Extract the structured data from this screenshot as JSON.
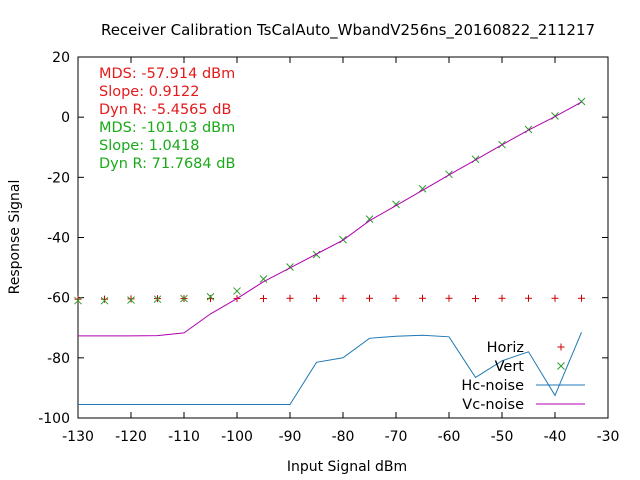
{
  "chart_data": {
    "type": "scatter",
    "title": "Receiver Calibration TsCalAuto_WbandV256ns_20160822_211217",
    "xlabel": "Input Signal dBm",
    "ylabel": "Response Signal",
    "xlim": [
      -130,
      -30
    ],
    "ylim": [
      -100,
      20
    ],
    "x_ticks": [
      -130,
      -120,
      -110,
      -100,
      -90,
      -80,
      -70,
      -60,
      -50,
      -40,
      -30
    ],
    "y_ticks": [
      -100,
      -80,
      -60,
      -40,
      -20,
      0,
      20
    ],
    "x_tick_labels": [
      "-130",
      "-120",
      "-110",
      "-100",
      "-90",
      "-80",
      "-70",
      "-60",
      "-50",
      "-40",
      "-30"
    ],
    "y_tick_labels": [
      "-100",
      "-80",
      "-60",
      "-40",
      "-20",
      "0",
      "20"
    ],
    "grid": false,
    "legend_position": "bottom-right",
    "annotations": [
      {
        "text": "MDS: -57.914 dBm",
        "color": "#e41a1c"
      },
      {
        "text": "Slope: 0.9122",
        "color": "#e41a1c"
      },
      {
        "text": "Dyn R: -5.4565 dB",
        "color": "#e41a1c"
      },
      {
        "text": "MDS: -101.03 dBm",
        "color": "#1aaa1a"
      },
      {
        "text": "Slope: 1.0418",
        "color": "#1aaa1a"
      },
      {
        "text": "Dyn R: 71.7684 dB",
        "color": "#1aaa1a"
      }
    ],
    "series": [
      {
        "name": "Horiz",
        "style": "points",
        "marker": "plus",
        "color": "#cc0000",
        "x": [
          -130,
          -125,
          -120,
          -115,
          -110,
          -105,
          -100,
          -95,
          -90,
          -85,
          -80,
          -75,
          -70,
          -65,
          -60,
          -55,
          -50,
          -45,
          -40,
          -35
        ],
        "y": [
          -60.5,
          -60.5,
          -60.4,
          -60.3,
          -60.3,
          -60.3,
          -60.3,
          -60.3,
          -60.2,
          -60.2,
          -60.2,
          -60.2,
          -60.2,
          -60.2,
          -60.2,
          -60.3,
          -60.2,
          -60.2,
          -60.2,
          -60.2
        ]
      },
      {
        "name": "Vert",
        "style": "points",
        "marker": "cross",
        "color": "#2a9a2a",
        "x": [
          -130,
          -125,
          -120,
          -115,
          -110,
          -105,
          -100,
          -95,
          -90,
          -85,
          -80,
          -75,
          -70,
          -65,
          -60,
          -55,
          -50,
          -45,
          -40,
          -35
        ],
        "y": [
          -61.0,
          -61.0,
          -60.8,
          -60.5,
          -60.3,
          -59.7,
          -57.8,
          -53.8,
          -49.8,
          -45.7,
          -40.7,
          -33.9,
          -29.0,
          -23.8,
          -19.0,
          -14.0,
          -9.1,
          -4.1,
          0.4,
          5.2
        ]
      },
      {
        "name": "Hc-noise",
        "style": "line",
        "color": "#1f78b4",
        "x": [
          -130,
          -125,
          -120,
          -115,
          -110,
          -105,
          -100,
          -95,
          -90,
          -85,
          -80,
          -75,
          -70,
          -65,
          -60,
          -55,
          -50,
          -45,
          -40,
          -35
        ],
        "y": [
          -95.5,
          -95.5,
          -95.5,
          -95.5,
          -95.5,
          -95.5,
          -95.5,
          -95.5,
          -95.5,
          -81.5,
          -80.0,
          -73.5,
          -72.8,
          -72.5,
          -73.0,
          -86.5,
          -81.0,
          -78.0,
          -92.5,
          -71.5
        ]
      },
      {
        "name": "Vc-noise",
        "style": "line",
        "color": "#b000b0",
        "x": [
          -130,
          -125,
          -120,
          -115,
          -110,
          -105,
          -100,
          -95,
          -90,
          -85,
          -80,
          -75,
          -70,
          -65,
          -60,
          -55,
          -50,
          -45,
          -40,
          -35
        ],
        "y": [
          -72.7,
          -72.7,
          -72.7,
          -72.6,
          -71.7,
          -65.4,
          -60.3,
          -54.7,
          -50.1,
          -45.5,
          -40.9,
          -34.4,
          -29.4,
          -24.3,
          -19.2,
          -14.2,
          -9.2,
          -4.3,
          0.2,
          5.0
        ]
      }
    ]
  }
}
